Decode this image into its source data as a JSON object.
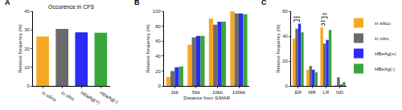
{
  "chart_data": [
    {
      "panel": "A",
      "type": "bar",
      "title": "Occurence in CFS",
      "categories": [
        "in silico",
        "in vitro",
        "HBeAg(+)",
        "HBeAg(-)"
      ],
      "values": [
        26.5,
        30.5,
        28.7,
        28.5
      ],
      "colors": [
        "#f7a823",
        "#6b6b6b",
        "#2b2bf5",
        "#3aa63a"
      ],
      "ylabel": "Relative frequency (%)",
      "ylim": [
        0,
        40
      ],
      "yticks": [
        0,
        10,
        20,
        30,
        40
      ]
    },
    {
      "panel": "B",
      "type": "bar",
      "xlabel": "Distance from S/MAR",
      "ylabel": "Relative frequency (%)",
      "categories": [
        "1kb",
        "5kb",
        "10kb",
        "100kb"
      ],
      "series": [
        {
          "name": "in silico",
          "color": "#f7a823",
          "values": [
            12,
            55,
            90,
            100
          ]
        },
        {
          "name": "in vitro",
          "color": "#6b6b6b",
          "values": [
            20,
            65,
            82,
            97
          ]
        },
        {
          "name": "HBeAg(+)",
          "color": "#2b2bf5",
          "values": [
            25,
            67,
            86,
            97
          ]
        },
        {
          "name": "HBeAg(-)",
          "color": "#3aa63a",
          "values": [
            26,
            67,
            86,
            96
          ]
        }
      ],
      "ylim": [
        0,
        100
      ],
      "yticks": [
        0,
        20,
        40,
        60,
        80,
        100
      ]
    },
    {
      "panel": "C",
      "type": "bar",
      "ylabel": "Relative frequency (%)",
      "categories": [
        "ER",
        "MR",
        "LR",
        "ND"
      ],
      "series": [
        {
          "name": "in silico",
          "color": "#f7a823",
          "values": [
            38,
            13,
            47,
            0.5
          ]
        },
        {
          "name": "in vitro",
          "color": "#6b6b6b",
          "values": [
            46,
            16,
            34,
            7
          ]
        },
        {
          "name": "HBeAg(+)",
          "color": "#2b2bf5",
          "values": [
            50,
            13,
            37,
            1
          ]
        },
        {
          "name": "HBeAg(-)",
          "color": "#3aa63a",
          "values": [
            43,
            11,
            45,
            3
          ]
        }
      ],
      "ylim": [
        0,
        60
      ],
      "yticks": [
        0,
        20,
        40,
        60
      ],
      "legend": "right",
      "annotations": [
        {
          "text": "***",
          "category": "ER",
          "from": "in silico",
          "to": "HBeAg(+)"
        },
        {
          "text": "**",
          "category": "LR",
          "from": "in silico",
          "to": "in vitro"
        },
        {
          "text": "**",
          "category": "LR",
          "from": "in silico",
          "to": "HBeAg(+)"
        }
      ]
    }
  ]
}
